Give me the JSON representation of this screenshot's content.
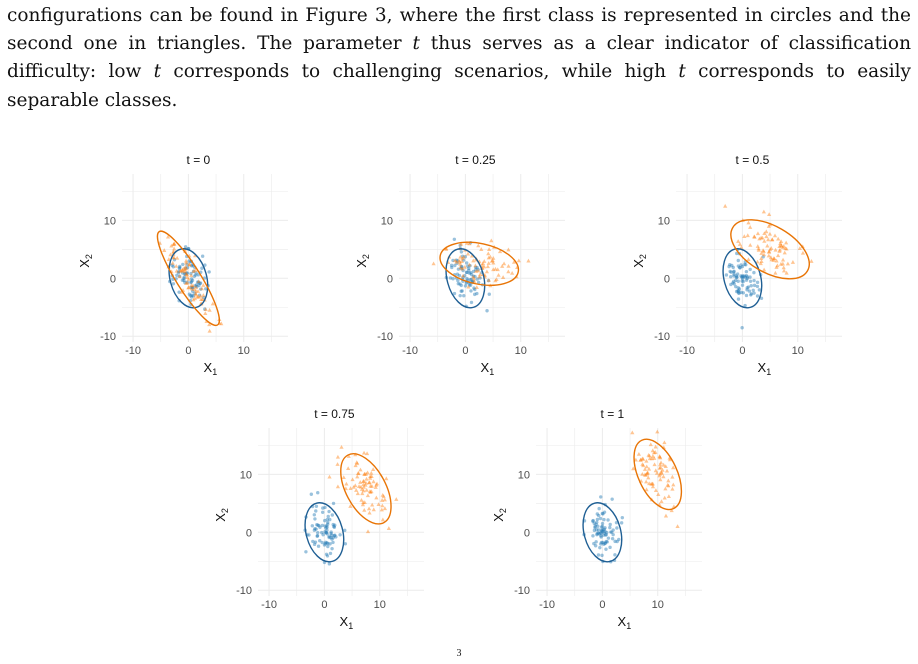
{
  "text": {
    "seg1": "configurations can be found in Figure 3, where the first class is represented in circles and the second one in triangles. The parameter ",
    "t1": "t",
    "seg2": " thus serves as a clear indicator of classification difficulty: low ",
    "t2": "t",
    "seg3": " corresponds to challenging scenarios, while high ",
    "t3": "t",
    "seg4": " corresponds to easily separable classes.",
    "caption_fragment": "3"
  },
  "colors": {
    "class1": "#1f77b4",
    "class2": "#ff7f0e",
    "grid": "#ebebeb",
    "axis_text": "#4d4d4d"
  },
  "chart_data": [
    {
      "type": "scatter",
      "title": "t = 0",
      "t": 0,
      "xlabel": "X",
      "xlabel_sub": "1",
      "ylabel": "X",
      "ylabel_sub": "2",
      "xlim": [
        -12,
        18
      ],
      "ylim": [
        -11,
        18
      ],
      "xticks": [
        -10,
        0,
        10
      ],
      "yticks": [
        -10,
        0,
        10
      ],
      "grid": true,
      "series": [
        {
          "class": 1,
          "marker": "circle",
          "color": "#1f77b4",
          "center": [
            0,
            0
          ],
          "ellipse_radii": [
            3.3,
            5.2
          ],
          "ellipse_angle_deg": 15
        },
        {
          "class": 2,
          "marker": "triangle",
          "color": "#ff7f0e",
          "center": [
            0,
            0
          ],
          "ellipse_radii": [
            2.2,
            9.5
          ],
          "ellipse_angle_deg": 32
        }
      ]
    },
    {
      "type": "scatter",
      "title": "t = 0.25",
      "t": 0.25,
      "xlabel": "X",
      "xlabel_sub": "1",
      "ylabel": "X",
      "ylabel_sub": "2",
      "xlim": [
        -12,
        18
      ],
      "ylim": [
        -11,
        18
      ],
      "xticks": [
        -10,
        0,
        10
      ],
      "yticks": [
        -10,
        0,
        10
      ],
      "grid": true,
      "series": [
        {
          "class": 1,
          "marker": "circle",
          "color": "#1f77b4",
          "center": [
            0,
            0
          ],
          "ellipse_radii": [
            3.3,
            5.2
          ],
          "ellipse_angle_deg": 15
        },
        {
          "class": 2,
          "marker": "triangle",
          "color": "#ff7f0e",
          "center": [
            2.5,
            2.5
          ],
          "ellipse_radii": [
            7.2,
            3.5
          ],
          "ellipse_angle_deg": -12
        }
      ]
    },
    {
      "type": "scatter",
      "title": "t = 0.5",
      "t": 0.5,
      "xlabel": "X",
      "xlabel_sub": "1",
      "ylabel": "X",
      "ylabel_sub": "2",
      "xlim": [
        -12,
        18
      ],
      "ylim": [
        -11,
        18
      ],
      "xticks": [
        -10,
        0,
        10
      ],
      "yticks": [
        -10,
        0,
        10
      ],
      "grid": true,
      "series": [
        {
          "class": 1,
          "marker": "circle",
          "color": "#1f77b4",
          "center": [
            0,
            0
          ],
          "ellipse_radii": [
            3.3,
            5.2
          ],
          "ellipse_angle_deg": 15
        },
        {
          "class": 2,
          "marker": "triangle",
          "color": "#ff7f0e",
          "center": [
            5,
            5
          ],
          "ellipse_radii": [
            7.8,
            4.0
          ],
          "ellipse_angle_deg": -30
        }
      ]
    },
    {
      "type": "scatter",
      "title": "t = 0.75",
      "t": 0.75,
      "xlabel": "X",
      "xlabel_sub": "1",
      "ylabel": "X",
      "ylabel_sub": "2",
      "xlim": [
        -12,
        18
      ],
      "ylim": [
        -11,
        18
      ],
      "xticks": [
        -10,
        0,
        10
      ],
      "yticks": [
        -10,
        0,
        10
      ],
      "grid": true,
      "series": [
        {
          "class": 1,
          "marker": "circle",
          "color": "#1f77b4",
          "center": [
            0,
            0
          ],
          "ellipse_radii": [
            3.3,
            5.2
          ],
          "ellipse_angle_deg": 15
        },
        {
          "class": 2,
          "marker": "triangle",
          "color": "#ff7f0e",
          "center": [
            7.5,
            7.5
          ],
          "ellipse_radii": [
            3.6,
            6.6
          ],
          "ellipse_angle_deg": 28
        }
      ]
    },
    {
      "type": "scatter",
      "title": "t = 1",
      "t": 1,
      "xlabel": "X",
      "xlabel_sub": "1",
      "ylabel": "X",
      "ylabel_sub": "2",
      "xlim": [
        -12,
        18
      ],
      "ylim": [
        -11,
        18
      ],
      "xticks": [
        -10,
        0,
        10
      ],
      "yticks": [
        -10,
        0,
        10
      ],
      "grid": true,
      "series": [
        {
          "class": 1,
          "marker": "circle",
          "color": "#1f77b4",
          "center": [
            0,
            0
          ],
          "ellipse_radii": [
            3.3,
            5.2
          ],
          "ellipse_angle_deg": 15
        },
        {
          "class": 2,
          "marker": "triangle",
          "color": "#ff7f0e",
          "center": [
            10,
            10
          ],
          "ellipse_radii": [
            3.5,
            6.5
          ],
          "ellipse_angle_deg": 25
        }
      ]
    }
  ]
}
